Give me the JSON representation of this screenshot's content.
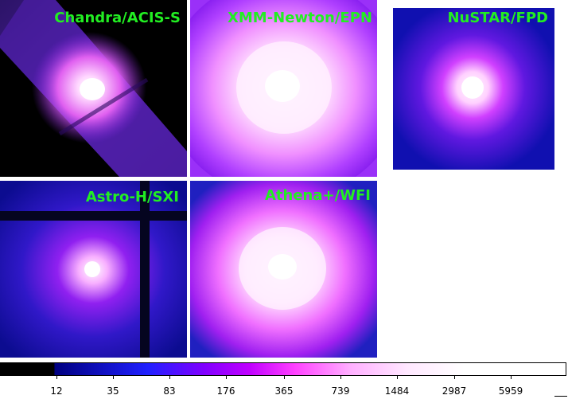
{
  "panels": [
    {
      "id": "chandra",
      "label": "Chandra/ACIS-S"
    },
    {
      "id": "xmm",
      "label": "XMM-Newton/EPN"
    },
    {
      "id": "nustar",
      "label": "NuSTAR/FPD"
    },
    {
      "id": "astroh",
      "label": "Astro-H/SXI"
    },
    {
      "id": "athena",
      "label": "Athena+/WFI"
    }
  ],
  "colorbar": {
    "ticks": [
      "12",
      "35",
      "83",
      "176",
      "365",
      "739",
      "1484",
      "2987",
      "5959"
    ],
    "colors": [
      "#000000",
      "#000080",
      "#2020ff",
      "#8000ff",
      "#c000ff",
      "#ff40ff",
      "#ffb0ff",
      "#ffe8ff",
      "#ffffff"
    ]
  }
}
